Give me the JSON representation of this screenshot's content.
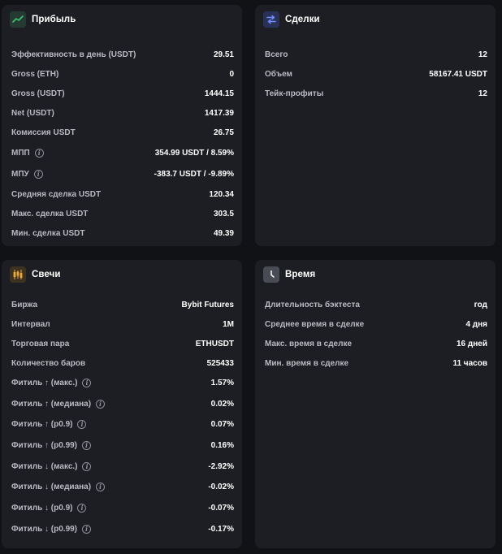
{
  "cards": {
    "profit": {
      "title": "Прибыль",
      "icon": "trend-line-icon",
      "icon_color": "#3ec46d",
      "rows": [
        {
          "label": "Эффективность в день (USDT)",
          "value": "29.51",
          "info": false
        },
        {
          "label": "Gross (ETH)",
          "value": "0",
          "info": false
        },
        {
          "label": "Gross (USDT)",
          "value": "1444.15",
          "info": false
        },
        {
          "label": "Net (USDT)",
          "value": "1417.39",
          "info": false
        },
        {
          "label": "Комиссия USDT",
          "value": "26.75",
          "info": false
        },
        {
          "label": "МПП",
          "value": "354.99 USDT / 8.59%",
          "info": true
        },
        {
          "label": "МПУ",
          "value": "-383.7 USDT / -9.89%",
          "info": true
        },
        {
          "label": "Средняя сделка USDT",
          "value": "120.34",
          "info": false
        },
        {
          "label": "Макс. сделка USDT",
          "value": "303.5",
          "info": false
        },
        {
          "label": "Мин. сделка USDT",
          "value": "49.39",
          "info": false
        }
      ]
    },
    "deals": {
      "title": "Сделки",
      "icon": "swap-arrows-icon",
      "icon_color": "#4c6ef5",
      "rows": [
        {
          "label": "Всего",
          "value": "12",
          "info": false
        },
        {
          "label": "Объем",
          "value": "58167.41 USDT",
          "info": false
        },
        {
          "label": "Тейк-профиты",
          "value": "12",
          "info": false
        }
      ]
    },
    "candles": {
      "title": "Свечи",
      "icon": "candlestick-icon",
      "icon_color": "#f0a93b",
      "rows": [
        {
          "label": "Биржа",
          "value": "Bybit Futures",
          "info": false
        },
        {
          "label": "Интервал",
          "value": "1M",
          "info": false
        },
        {
          "label": "Торговая пара",
          "value": "ETHUSDT",
          "info": false
        },
        {
          "label": "Количество баров",
          "value": "525433",
          "info": false
        },
        {
          "label": "Фитиль ↑ (макс.)",
          "value": "1.57%",
          "info": true
        },
        {
          "label": "Фитиль ↑ (медиана)",
          "value": "0.02%",
          "info": true
        },
        {
          "label": "Фитиль ↑ (p0.9)",
          "value": "0.07%",
          "info": true
        },
        {
          "label": "Фитиль ↑ (p0.99)",
          "value": "0.16%",
          "info": true
        },
        {
          "label": "Фитиль ↓ (макс.)",
          "value": "-2.92%",
          "info": true
        },
        {
          "label": "Фитиль ↓ (медиана)",
          "value": "-0.02%",
          "info": true
        },
        {
          "label": "Фитиль ↓ (p0.9)",
          "value": "-0.07%",
          "info": true
        },
        {
          "label": "Фитиль ↓ (p0.99)",
          "value": "-0.17%",
          "info": true
        }
      ]
    },
    "time": {
      "title": "Время",
      "icon": "clock-icon",
      "icon_color": "#8c8f99",
      "rows": [
        {
          "label": "Длительность бэктеста",
          "value": "год",
          "info": false
        },
        {
          "label": "Среднее время в сделке",
          "value": "4 дня",
          "info": false
        },
        {
          "label": "Макс. время в сделке",
          "value": "16 дней",
          "info": false
        },
        {
          "label": "Мин. время в сделке",
          "value": "11 часов",
          "info": false
        }
      ]
    }
  },
  "info_glyph": "i"
}
